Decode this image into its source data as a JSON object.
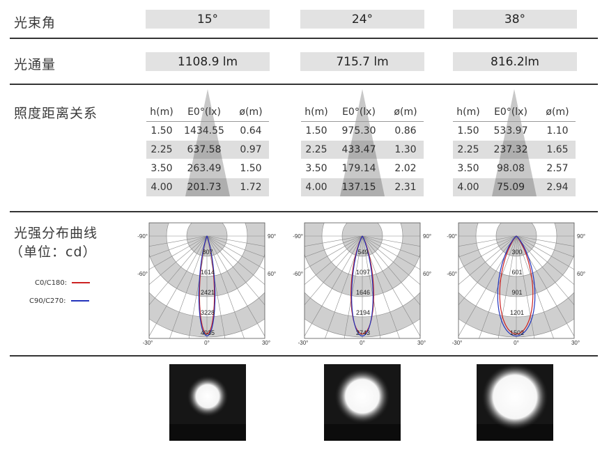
{
  "labels": {
    "beam_angle": "光束角",
    "flux": "光通量",
    "illuminance": "照度距离关系",
    "intensity_line1": "光强分布曲线",
    "intensity_line2": "（单位：cd）"
  },
  "beam_angles": [
    "15°",
    "24°",
    "38°"
  ],
  "fluxes": [
    "1108.9 lm",
    "715.7 lm",
    "816.2lm"
  ],
  "table_headers": [
    "h(m)",
    "E0°(lx)",
    "ø(m)"
  ],
  "tables": [
    {
      "rows": [
        [
          "1.50",
          "1434.55",
          "0.64"
        ],
        [
          "2.25",
          "637.58",
          "0.97"
        ],
        [
          "3.50",
          "263.49",
          "1.50"
        ],
        [
          "4.00",
          "201.73",
          "1.72"
        ]
      ]
    },
    {
      "rows": [
        [
          "1.50",
          "975.30",
          "0.86"
        ],
        [
          "2.25",
          "433.47",
          "1.30"
        ],
        [
          "3.50",
          "179.14",
          "2.02"
        ],
        [
          "4.00",
          "137.15",
          "2.31"
        ]
      ]
    },
    {
      "rows": [
        [
          "1.50",
          "533.97",
          "1.10"
        ],
        [
          "2.25",
          "237.32",
          "1.65"
        ],
        [
          "3.50",
          "98.08",
          "2.57"
        ],
        [
          "4.00",
          "75.09",
          "2.94"
        ]
      ]
    }
  ],
  "legend": {
    "c0": "C0/C180:",
    "c90": "C90/C270:",
    "c0_color": "#cc2222",
    "c90_color": "#2233bb"
  },
  "polar_angle_labels": [
    "-90°",
    "90°",
    "-60°",
    "60°",
    "-30°",
    "0°",
    "30°"
  ],
  "chart_data": [
    {
      "type": "polar",
      "title": "",
      "ring_labels": [
        "807",
        "1614",
        "2421",
        "3228",
        "4035"
      ],
      "max": 4035,
      "series": [
        {
          "name": "C0/C180",
          "half_angle_deg": 8.5
        },
        {
          "name": "C90/C270",
          "half_angle_deg": 9
        }
      ]
    },
    {
      "type": "polar",
      "title": "",
      "ring_labels": [
        "549",
        "1097",
        "1646",
        "2194",
        "2743"
      ],
      "max": 2743,
      "series": [
        {
          "name": "C0/C180",
          "half_angle_deg": 13
        },
        {
          "name": "C90/C270",
          "half_angle_deg": 12
        }
      ]
    },
    {
      "type": "polar",
      "title": "",
      "ring_labels": [
        "300",
        "601",
        "901",
        "1201",
        "1502"
      ],
      "max": 1502,
      "series": [
        {
          "name": "C0/C180",
          "half_angle_deg": 19
        },
        {
          "name": "C90/C270",
          "half_angle_deg": 21
        }
      ]
    }
  ]
}
